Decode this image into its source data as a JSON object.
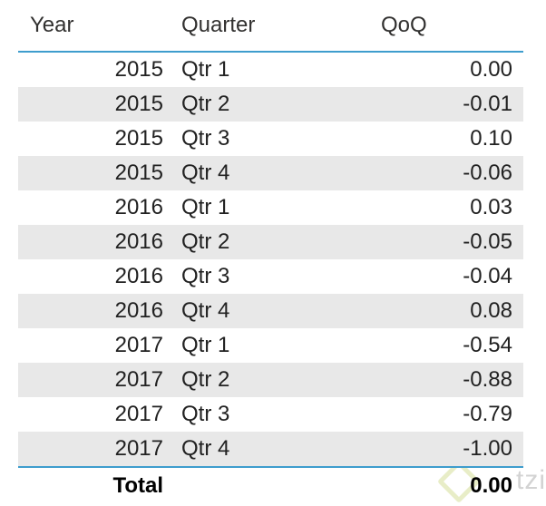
{
  "table": {
    "columns": [
      {
        "label": "Year"
      },
      {
        "label": "Quarter"
      },
      {
        "label": "QoQ"
      }
    ],
    "rows": [
      {
        "year": "2015",
        "quarter": "Qtr 1",
        "qoq": "0.00"
      },
      {
        "year": "2015",
        "quarter": "Qtr 2",
        "qoq": "-0.01"
      },
      {
        "year": "2015",
        "quarter": "Qtr 3",
        "qoq": "0.10"
      },
      {
        "year": "2015",
        "quarter": "Qtr 4",
        "qoq": "-0.06"
      },
      {
        "year": "2016",
        "quarter": "Qtr 1",
        "qoq": "0.03"
      },
      {
        "year": "2016",
        "quarter": "Qtr 2",
        "qoq": "-0.05"
      },
      {
        "year": "2016",
        "quarter": "Qtr 3",
        "qoq": "-0.04"
      },
      {
        "year": "2016",
        "quarter": "Qtr 4",
        "qoq": "0.08"
      },
      {
        "year": "2017",
        "quarter": "Qtr 1",
        "qoq": "-0.54"
      },
      {
        "year": "2017",
        "quarter": "Qtr 2",
        "qoq": "-0.88"
      },
      {
        "year": "2017",
        "quarter": "Qtr 3",
        "qoq": "-0.79"
      },
      {
        "year": "2017",
        "quarter": "Qtr 4",
        "qoq": "-1.00"
      }
    ],
    "total": {
      "label": "Total",
      "qoq": "0.00"
    }
  },
  "watermark": {
    "text": "tzi"
  },
  "colors": {
    "accent_line": "#3e9dcd",
    "band": "#e8e8e8",
    "text": "#252423"
  },
  "chart_data": {
    "type": "table",
    "title": "",
    "columns": [
      "Year",
      "Quarter",
      "QoQ"
    ],
    "rows": [
      [
        2015,
        "Qtr 1",
        0.0
      ],
      [
        2015,
        "Qtr 2",
        -0.01
      ],
      [
        2015,
        "Qtr 3",
        0.1
      ],
      [
        2015,
        "Qtr 4",
        -0.06
      ],
      [
        2016,
        "Qtr 1",
        0.03
      ],
      [
        2016,
        "Qtr 2",
        -0.05
      ],
      [
        2016,
        "Qtr 3",
        -0.04
      ],
      [
        2016,
        "Qtr 4",
        0.08
      ],
      [
        2017,
        "Qtr 1",
        -0.54
      ],
      [
        2017,
        "Qtr 2",
        -0.88
      ],
      [
        2017,
        "Qtr 3",
        -0.79
      ],
      [
        2017,
        "Qtr 4",
        -1.0
      ]
    ],
    "total_row": {
      "label": "Total",
      "QoQ": 0.0
    },
    "layout": {
      "banded_rows": true,
      "header_underline": true,
      "total_overline": true
    }
  }
}
